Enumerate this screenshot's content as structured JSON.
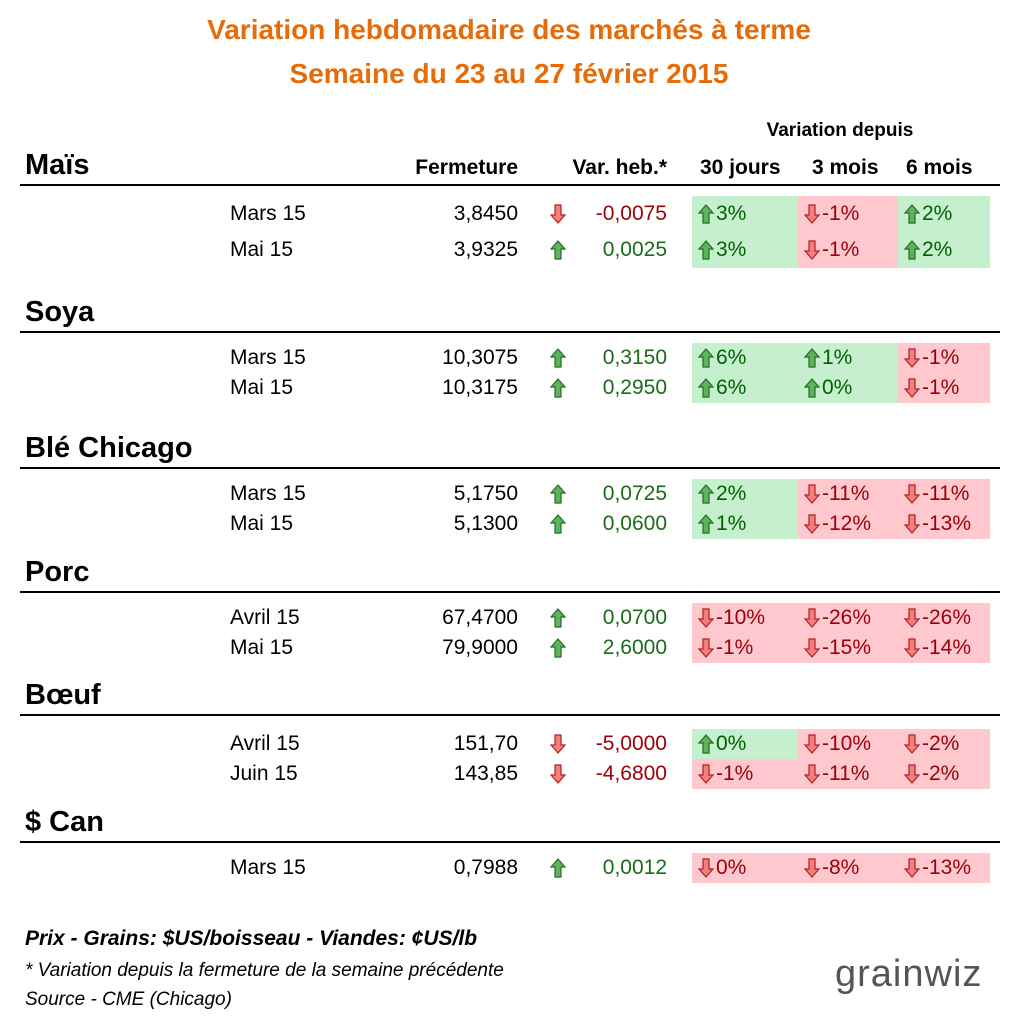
{
  "header": {
    "title": "Variation hebdomadaire des marchés à terme",
    "subtitle": "Semaine du 23 au 27 février 2015"
  },
  "columns": {
    "group": "Variation depuis",
    "close": "Fermeture",
    "weekly": "Var. heb.*",
    "d30": "30 jours",
    "m3": "3 mois",
    "m6": "6 mois"
  },
  "sections": [
    {
      "name": "Maïs",
      "rows": [
        {
          "contract": "Mars 15",
          "close": "3,8450",
          "weekly": {
            "text": "-0,0075",
            "trend": "down"
          },
          "d30": {
            "text": "3%",
            "trend": "up"
          },
          "m3": {
            "text": "-1%",
            "trend": "down"
          },
          "m6": {
            "text": "2%",
            "trend": "up"
          }
        },
        {
          "contract": "Mai 15",
          "close": "3,9325",
          "weekly": {
            "text": "0,0025",
            "trend": "up"
          },
          "d30": {
            "text": "3%",
            "trend": "up"
          },
          "m3": {
            "text": "-1%",
            "trend": "down"
          },
          "m6": {
            "text": "2%",
            "trend": "up"
          }
        }
      ]
    },
    {
      "name": "Soya",
      "rows": [
        {
          "contract": "Mars 15",
          "close": "10,3075",
          "weekly": {
            "text": "0,3150",
            "trend": "up"
          },
          "d30": {
            "text": "6%",
            "trend": "up"
          },
          "m3": {
            "text": "1%",
            "trend": "up"
          },
          "m6": {
            "text": "-1%",
            "trend": "down"
          }
        },
        {
          "contract": "Mai 15",
          "close": "10,3175",
          "weekly": {
            "text": "0,2950",
            "trend": "up"
          },
          "d30": {
            "text": "6%",
            "trend": "up"
          },
          "m3": {
            "text": "0%",
            "trend": "up"
          },
          "m6": {
            "text": "-1%",
            "trend": "down"
          }
        }
      ]
    },
    {
      "name": "Blé Chicago",
      "rows": [
        {
          "contract": "Mars 15",
          "close": "5,1750",
          "weekly": {
            "text": "0,0725",
            "trend": "up"
          },
          "d30": {
            "text": "2%",
            "trend": "up"
          },
          "m3": {
            "text": "-11%",
            "trend": "down"
          },
          "m6": {
            "text": "-11%",
            "trend": "down"
          }
        },
        {
          "contract": "Mai 15",
          "close": "5,1300",
          "weekly": {
            "text": "0,0600",
            "trend": "up"
          },
          "d30": {
            "text": "1%",
            "trend": "up"
          },
          "m3": {
            "text": "-12%",
            "trend": "down"
          },
          "m6": {
            "text": "-13%",
            "trend": "down"
          }
        }
      ]
    },
    {
      "name": "Porc",
      "rows": [
        {
          "contract": "Avril 15",
          "close": "67,4700",
          "weekly": {
            "text": "0,0700",
            "trend": "up"
          },
          "d30": {
            "text": "-10%",
            "trend": "down"
          },
          "m3": {
            "text": "-26%",
            "trend": "down"
          },
          "m6": {
            "text": "-26%",
            "trend": "down"
          }
        },
        {
          "contract": "Mai 15",
          "close": "79,9000",
          "weekly": {
            "text": "2,6000",
            "trend": "up"
          },
          "d30": {
            "text": "-1%",
            "trend": "down"
          },
          "m3": {
            "text": "-15%",
            "trend": "down"
          },
          "m6": {
            "text": "-14%",
            "trend": "down"
          }
        }
      ]
    },
    {
      "name": "Bœuf",
      "rows": [
        {
          "contract": "Avril 15",
          "close": "151,70",
          "weekly": {
            "text": "-5,0000",
            "trend": "down"
          },
          "d30": {
            "text": "0%",
            "trend": "up"
          },
          "m3": {
            "text": "-10%",
            "trend": "down"
          },
          "m6": {
            "text": "-2%",
            "trend": "down"
          }
        },
        {
          "contract": "Juin 15",
          "close": "143,85",
          "weekly": {
            "text": "-4,6800",
            "trend": "down"
          },
          "d30": {
            "text": "-1%",
            "trend": "down"
          },
          "m3": {
            "text": "-11%",
            "trend": "down"
          },
          "m6": {
            "text": "-2%",
            "trend": "down"
          }
        }
      ]
    },
    {
      "name": "$ Can",
      "rows": [
        {
          "contract": "Mars 15",
          "close": "0,7988",
          "weekly": {
            "text": "0,0012",
            "trend": "up"
          },
          "d30": {
            "text": "0%",
            "trend": "down"
          },
          "m3": {
            "text": "-8%",
            "trend": "down"
          },
          "m6": {
            "text": "-13%",
            "trend": "down"
          }
        }
      ]
    }
  ],
  "footer": {
    "units": "Prix - Grains: $US/boisseau - Viandes: ¢US/lb",
    "note": "* Variation depuis la fermeture de la semaine précédente",
    "source": "Source - CME (Chicago)"
  },
  "logo": "grainwiz"
}
